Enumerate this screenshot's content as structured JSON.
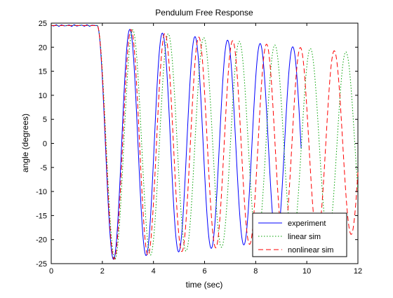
{
  "chart_data": {
    "type": "line",
    "title": "Pendulum Free Response",
    "xlabel": "time (sec)",
    "ylabel": "angle (degrees)",
    "xlim": [
      0,
      12
    ],
    "ylim": [
      -25,
      25
    ],
    "xticks": [
      0,
      2,
      4,
      6,
      8,
      10,
      12
    ],
    "yticks": [
      -25,
      -20,
      -15,
      -10,
      -5,
      0,
      5,
      10,
      15,
      20,
      25
    ],
    "grid": false,
    "legend_position": "bottom-right",
    "model": {
      "release_time": 1.8,
      "initial_angle": 24.5,
      "amplitude_decay_per_sec": 0.026
    },
    "series": [
      {
        "name": "experiment",
        "color": "#0000ff",
        "style": "solid",
        "period": 1.275,
        "t_end": 9.78,
        "peaks": [
          {
            "t": 3.19,
            "angle": 23.8
          },
          {
            "t": 4.46,
            "angle": 23.3
          },
          {
            "t": 5.74,
            "angle": 22.5
          },
          {
            "t": 7.02,
            "angle": 22.0
          },
          {
            "t": 8.29,
            "angle": 21.3
          },
          {
            "t": 9.57,
            "angle": 20.8
          }
        ],
        "troughs": [
          {
            "t": 2.55,
            "angle": -23.0
          },
          {
            "t": 3.83,
            "angle": -22.4
          },
          {
            "t": 5.1,
            "angle": -21.5
          },
          {
            "t": 6.38,
            "angle": -20.9
          },
          {
            "t": 7.65,
            "angle": -20.3
          }
        ]
      },
      {
        "name": "linear sim",
        "color": "#00a000",
        "style": "dotted",
        "period": 1.39,
        "t_end": 12,
        "peaks": [
          {
            "t": 3.19,
            "angle": 23.6
          },
          {
            "t": 4.58,
            "angle": 22.8
          },
          {
            "t": 5.97,
            "angle": 22.0
          },
          {
            "t": 7.36,
            "angle": 21.3
          },
          {
            "t": 8.75,
            "angle": 20.6
          },
          {
            "t": 10.14,
            "angle": 19.9
          },
          {
            "t": 11.53,
            "angle": 19.2
          }
        ],
        "troughs": [
          {
            "t": 2.5,
            "angle": -23.4
          },
          {
            "t": 3.89,
            "angle": -22.6
          },
          {
            "t": 5.28,
            "angle": -21.9
          },
          {
            "t": 6.67,
            "angle": -21.2
          },
          {
            "t": 8.06,
            "angle": -20.5
          },
          {
            "t": 9.45,
            "angle": -19.8
          },
          {
            "t": 10.84,
            "angle": -19.1
          }
        ]
      },
      {
        "name": "nonlinear sim",
        "color": "#ff0000",
        "style": "dashed",
        "period": 1.325,
        "t_end": 12,
        "peaks": [
          {
            "t": 3.13,
            "angle": 24.0
          },
          {
            "t": 4.52,
            "angle": 23.3
          },
          {
            "t": 5.84,
            "angle": 22.5
          },
          {
            "t": 7.17,
            "angle": 21.8
          },
          {
            "t": 8.49,
            "angle": 21.1
          },
          {
            "t": 9.82,
            "angle": 20.4
          },
          {
            "t": 11.14,
            "angle": 19.8
          }
        ],
        "troughs": [
          {
            "t": 2.55,
            "angle": -23.4
          },
          {
            "t": 3.85,
            "angle": -22.6
          },
          {
            "t": 5.17,
            "angle": -21.9
          },
          {
            "t": 6.5,
            "angle": -21.2
          },
          {
            "t": 7.82,
            "angle": -20.5
          },
          {
            "t": 9.15,
            "angle": -19.8
          },
          {
            "t": 10.47,
            "angle": -19.1
          },
          {
            "t": 11.8,
            "angle": -18.5
          }
        ]
      }
    ]
  }
}
